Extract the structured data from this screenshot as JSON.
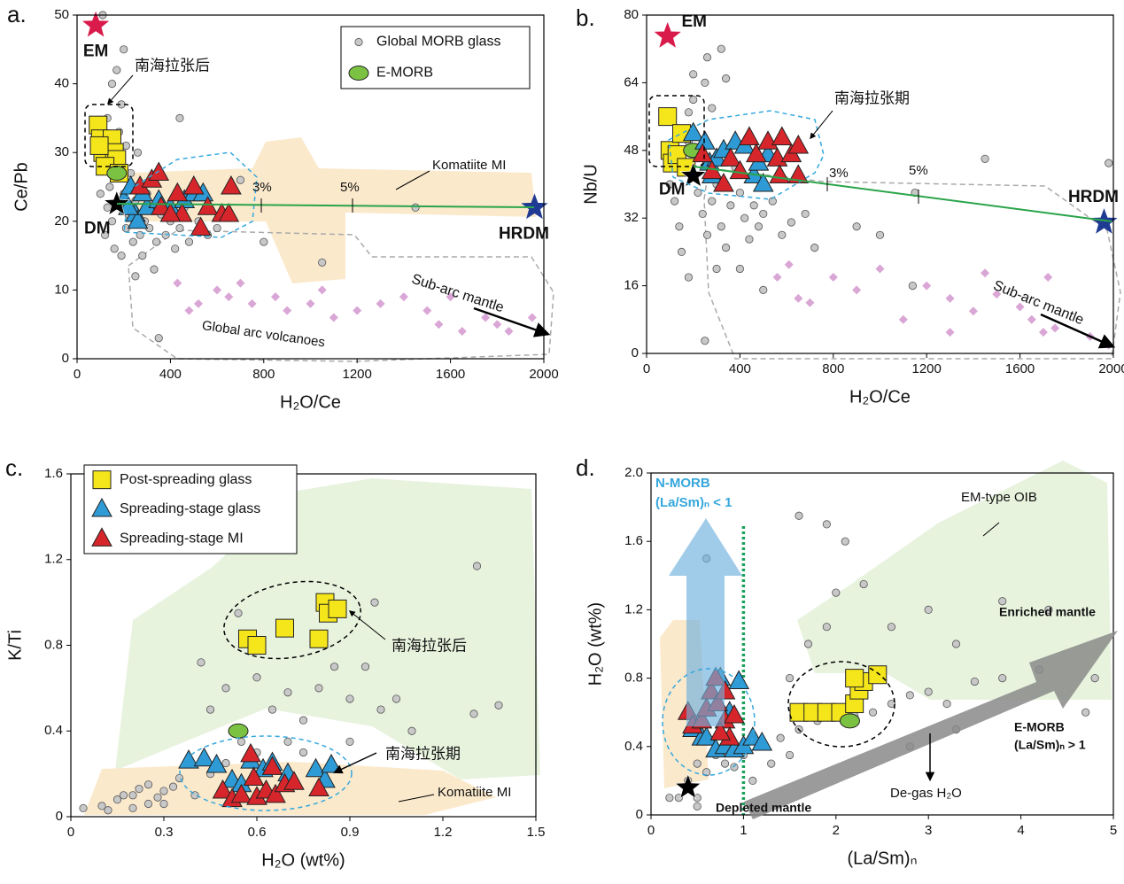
{
  "chart_data": [
    {
      "type": "scatter",
      "label": "a.",
      "xlabel": "H₂O/Ce",
      "ylabel": "Ce/Pb",
      "xlim": [
        0,
        2000
      ],
      "ylim": [
        0,
        50
      ],
      "xticks": [
        0,
        400,
        800,
        1200,
        1600,
        2000
      ],
      "yticks": [
        0,
        10,
        20,
        30,
        40,
        50
      ],
      "series": [
        {
          "name": "Global MORB glass",
          "color": "#c8c8c8",
          "marker": "circle",
          "x": [
            120,
            130,
            140,
            150,
            160,
            170,
            180,
            190,
            200,
            210,
            220,
            230,
            240,
            250,
            260,
            270,
            280,
            290,
            300,
            310,
            320,
            340,
            360,
            380,
            400,
            420,
            440,
            460,
            480,
            520,
            560,
            600,
            150,
            170,
            130,
            200,
            110,
            250,
            330,
            440,
            520,
            700,
            800,
            1050,
            1450,
            350,
            100,
            190,
            150,
            210
          ],
          "values": [
            18,
            22,
            25,
            20,
            16,
            28,
            33,
            37,
            24,
            19,
            21,
            27,
            17,
            23,
            30,
            18,
            15,
            20,
            24,
            19,
            22,
            17,
            21,
            18,
            20,
            16,
            19,
            22,
            17,
            20,
            18,
            19,
            40,
            42,
            35,
            45,
            50,
            12,
            13,
            35,
            24,
            26,
            17,
            14,
            22,
            3,
            24,
            15,
            30,
            31
          ]
        },
        {
          "color": "#d9a6d6",
          "marker": "diamond",
          "x": [
            430,
            480,
            520,
            600,
            650,
            700,
            750,
            850,
            900,
            1000,
            1100,
            1200,
            1300,
            1400,
            1500,
            1550,
            1650,
            1750,
            1800,
            1850,
            1950,
            1600,
            1050
          ],
          "values": [
            11,
            7,
            8,
            10,
            9,
            11,
            8,
            9,
            7,
            8,
            6,
            7,
            8,
            9,
            7,
            5,
            4,
            6,
            5,
            4,
            6,
            9,
            10
          ]
        },
        {
          "color": "#f5e51b",
          "marker": "square",
          "x": [
            90,
            100,
            110,
            150,
            160,
            170,
            120,
            180,
            95
          ],
          "values": [
            34,
            32,
            30,
            32,
            30,
            29,
            28,
            27,
            31
          ]
        },
        {
          "name": "E-MORB",
          "color": "#7cc242",
          "marker": "ellipse",
          "x": [
            170
          ],
          "values": [
            27
          ]
        },
        {
          "color": "#2e9bd6",
          "marker": "triangle",
          "x": [
            200,
            230,
            250,
            260,
            300,
            350,
            400,
            460,
            500,
            540,
            280,
            220
          ],
          "values": [
            23,
            25,
            21,
            20,
            22,
            23,
            22,
            23,
            24,
            24,
            24,
            22
          ]
        },
        {
          "color": "#d7262b",
          "marker": "triangle",
          "x": [
            270,
            320,
            350,
            430,
            450,
            500,
            530,
            560,
            620,
            650,
            660,
            360,
            400
          ],
          "values": [
            25,
            26,
            27,
            24,
            21,
            25,
            19,
            22,
            21,
            21,
            25,
            22,
            21
          ]
        }
      ],
      "end_members": [
        {
          "label": "EM",
          "x": 80,
          "y": 48.5,
          "color": "#d81b4a"
        },
        {
          "label": "DM",
          "x": 170,
          "y": 22.5,
          "color": "#000000"
        },
        {
          "label": "HRDM",
          "x": 1960,
          "y": 22,
          "color": "#1f3a93"
        }
      ],
      "annotations": [
        "南海拉张后",
        "Komatiite MI",
        "3%",
        "5%",
        "Sub-arc mantle",
        "Global arc volcanoes"
      ]
    },
    {
      "type": "scatter",
      "label": "b.",
      "xlabel": "H₂O/Ce",
      "ylabel": "Nb/U",
      "xlim": [
        0,
        2000
      ],
      "ylim": [
        0,
        80
      ],
      "xticks": [
        0,
        400,
        800,
        1200,
        1600,
        2000
      ],
      "yticks": [
        0,
        16,
        32,
        48,
        64,
        80
      ],
      "series": [
        {
          "color": "#c8c8c8",
          "marker": "circle",
          "x": [
            100,
            120,
            140,
            160,
            180,
            200,
            220,
            240,
            260,
            280,
            300,
            320,
            340,
            360,
            380,
            400,
            420,
            440,
            460,
            480,
            500,
            540,
            580,
            620,
            680,
            720,
            200,
            250,
            280,
            320,
            150,
            180,
            300,
            400,
            500,
            900,
            1000,
            1150,
            1450,
            1980,
            1140,
            250,
            340,
            260,
            180
          ],
          "values": [
            40,
            36,
            30,
            44,
            50,
            60,
            38,
            33,
            28,
            36,
            40,
            30,
            25,
            35,
            44,
            38,
            32,
            27,
            35,
            30,
            33,
            36,
            28,
            31,
            33,
            25,
            66,
            64,
            58,
            72,
            24,
            18,
            20,
            20,
            15,
            30,
            28,
            38,
            46,
            45,
            16,
            3,
            65,
            70,
            57
          ]
        },
        {
          "color": "#d9a6d6",
          "marker": "diamond",
          "x": [
            560,
            610,
            650,
            700,
            800,
            900,
            1000,
            1100,
            1200,
            1300,
            1400,
            1500,
            1600,
            1650,
            1750,
            1720,
            1700,
            1900,
            1980,
            1450,
            1300
          ],
          "values": [
            18,
            21,
            13,
            12,
            18,
            15,
            20,
            8,
            16,
            13,
            10,
            14,
            11,
            8,
            6,
            18,
            5,
            4,
            2,
            19,
            5
          ]
        },
        {
          "color": "#f5e51b",
          "marker": "square",
          "x": [
            90,
            100,
            110,
            130,
            170,
            150
          ],
          "values": [
            56,
            48,
            45,
            47,
            44,
            52
          ]
        },
        {
          "color": "#7cc242",
          "marker": "ellipse",
          "x": [
            200
          ],
          "values": [
            48
          ]
        },
        {
          "color": "#2e9bd6",
          "marker": "triangle",
          "x": [
            200,
            250,
            270,
            300,
            330,
            380,
            420,
            460,
            480,
            500,
            520,
            280
          ],
          "values": [
            52,
            50,
            45,
            46,
            48,
            50,
            49,
            42,
            45,
            40,
            47,
            42
          ]
        },
        {
          "color": "#d7262b",
          "marker": "triangle",
          "x": [
            240,
            280,
            330,
            360,
            400,
            440,
            470,
            520,
            560,
            570,
            620,
            650,
            650,
            580
          ],
          "values": [
            47,
            43,
            40,
            46,
            43,
            51,
            47,
            50,
            46,
            42,
            47,
            49,
            42,
            51
          ]
        }
      ],
      "end_members": [
        {
          "label": "EM",
          "x": 90,
          "y": 75,
          "color": "#d81b4a"
        },
        {
          "label": "DM",
          "x": 200,
          "y": 42,
          "color": "#000000"
        },
        {
          "label": "HRDM",
          "x": 1960,
          "y": 31,
          "color": "#1f3a93"
        }
      ],
      "annotations": [
        "南海拉张期",
        "3%",
        "5%",
        "Sub-arc mantle"
      ]
    },
    {
      "type": "scatter",
      "label": "c.",
      "xlabel": "H₂O (wt%)",
      "ylabel": "K/Ti",
      "xlim": [
        0,
        1.5
      ],
      "ylim": [
        0,
        1.6
      ],
      "xticks": [
        0,
        0.3,
        0.6,
        0.9,
        1.2,
        1.5
      ],
      "yticks": [
        0,
        0.4,
        0.8,
        1.2,
        1.6
      ],
      "series": [
        {
          "color": "#c8c8c8",
          "marker": "circle",
          "x": [
            0.04,
            0.1,
            0.15,
            0.2,
            0.25,
            0.3,
            0.35,
            0.4,
            0.2,
            0.3,
            0.45,
            0.5,
            0.55,
            0.6,
            0.65,
            0.7,
            0.75,
            0.8,
            0.85,
            0.9,
            0.95,
            1.0,
            1.05,
            0.6,
            0.5,
            0.45,
            0.7,
            0.75,
            0.9,
            1.1,
            1.31,
            1.3,
            1.38,
            0.98,
            0.17,
            0.22,
            0.28,
            0.33,
            0.25,
            0.12,
            0.54,
            0.42
          ],
          "values": [
            0.04,
            0.05,
            0.08,
            0.1,
            0.15,
            0.12,
            0.18,
            0.1,
            0.04,
            0.06,
            0.2,
            0.25,
            0.35,
            0.3,
            0.5,
            0.58,
            0.45,
            0.6,
            0.7,
            0.55,
            0.7,
            0.5,
            0.55,
            0.65,
            0.6,
            0.5,
            0.35,
            0.3,
            0.35,
            0.4,
            1.17,
            0.48,
            0.52,
            1.0,
            0.1,
            0.13,
            0.09,
            0.14,
            0.06,
            0.03,
            0.95,
            0.72
          ]
        },
        {
          "name": "Post-spreading glass",
          "color": "#f5e51b",
          "marker": "square",
          "x": [
            0.57,
            0.6,
            0.69,
            0.8,
            0.82,
            0.83,
            0.86
          ],
          "values": [
            0.83,
            0.8,
            0.88,
            0.83,
            1.0,
            0.95,
            0.97
          ]
        },
        {
          "color": "#7cc242",
          "marker": "ellipse",
          "x": [
            0.54
          ],
          "values": [
            0.4
          ]
        },
        {
          "name": "Spreading-stage glass",
          "color": "#2e9bd6",
          "marker": "triangle",
          "x": [
            0.38,
            0.43,
            0.47,
            0.52,
            0.58,
            0.62,
            0.65,
            0.7,
            0.79,
            0.82,
            0.84,
            0.55
          ],
          "values": [
            0.26,
            0.27,
            0.24,
            0.17,
            0.26,
            0.22,
            0.25,
            0.2,
            0.22,
            0.17,
            0.24,
            0.15
          ]
        },
        {
          "name": "Spreading-stage MI",
          "color": "#d7262b",
          "marker": "triangle",
          "x": [
            0.49,
            0.52,
            0.55,
            0.58,
            0.59,
            0.6,
            0.63,
            0.66,
            0.69,
            0.72,
            0.65,
            0.8
          ],
          "values": [
            0.12,
            0.08,
            0.1,
            0.29,
            0.18,
            0.09,
            0.12,
            0.1,
            0.15,
            0.16,
            0.23,
            0.13
          ]
        }
      ],
      "annotations": [
        "南海拉张后",
        "南海拉张期",
        "Komatiite MI"
      ]
    },
    {
      "type": "scatter",
      "label": "d.",
      "xlabel": "(La/Sm)ₙ",
      "ylabel": "H₂O (wt%)",
      "xlim": [
        0,
        5
      ],
      "ylim": [
        0,
        2
      ],
      "xticks": [
        0,
        1,
        2,
        3,
        4,
        5
      ],
      "yticks": [
        0,
        0.4,
        0.8,
        1.2,
        1.6,
        {
          "value": 2,
          "label": "2.0"
        }
      ],
      "vline": 1,
      "series": [
        {
          "color": "#c8c8c8",
          "marker": "circle",
          "x": [
            0.3,
            0.4,
            0.5,
            0.6,
            0.7,
            0.8,
            0.9,
            1.0,
            1.2,
            1.4,
            1.6,
            1.8,
            2.0,
            2.2,
            2.4,
            2.6,
            2.8,
            3.0,
            3.2,
            3.5,
            3.8,
            4.2,
            4.8,
            1.5,
            1.7,
            1.9,
            2.0,
            2.1,
            2.3,
            2.6,
            3.0,
            3.3,
            3.8,
            4.3,
            1.6,
            1.9,
            2.8,
            3.3,
            4.7,
            0.2,
            0.5,
            1.1,
            1.3,
            1.5,
            0.6,
            0.5
          ],
          "values": [
            0.1,
            0.2,
            0.3,
            0.25,
            0.35,
            0.3,
            0.28,
            0.35,
            0.4,
            0.45,
            0.5,
            0.55,
            0.6,
            0.58,
            0.6,
            0.65,
            0.7,
            0.72,
            0.65,
            0.78,
            0.8,
            0.85,
            0.8,
            0.8,
            1.0,
            1.1,
            1.3,
            1.6,
            1.35,
            1.1,
            1.2,
            1.0,
            1.25,
            1.2,
            1.75,
            1.7,
            0.4,
            0.5,
            0.6,
            0.1,
            0.1,
            0.2,
            0.3,
            0.35,
            1.5,
            0.05
          ]
        },
        {
          "color": "#f5e51b",
          "marker": "square",
          "x": [
            1.6,
            1.75,
            1.9,
            2.05,
            2.2,
            2.25,
            2.3,
            2.45,
            2.2
          ],
          "values": [
            0.6,
            0.6,
            0.6,
            0.6,
            0.65,
            0.73,
            0.78,
            0.82,
            0.8
          ]
        },
        {
          "color": "#7cc242",
          "marker": "ellipse",
          "x": [
            2.15
          ],
          "values": [
            0.55
          ]
        },
        {
          "color": "#2e9bd6",
          "marker": "triangle",
          "x": [
            0.45,
            0.55,
            0.6,
            0.7,
            0.8,
            0.9,
            1.0,
            1.1,
            1.2,
            0.75,
            0.95,
            0.85
          ],
          "values": [
            0.5,
            0.45,
            0.45,
            0.38,
            0.4,
            0.38,
            0.4,
            0.45,
            0.42,
            0.8,
            0.78,
            0.6
          ]
        },
        {
          "color": "#d7262b",
          "marker": "triangle",
          "x": [
            0.4,
            0.45,
            0.55,
            0.6,
            0.65,
            0.7,
            0.72,
            0.8,
            0.85,
            0.9,
            0.8,
            0.75
          ],
          "values": [
            0.6,
            0.52,
            0.55,
            0.62,
            0.72,
            0.8,
            0.65,
            0.55,
            0.45,
            0.58,
            0.72,
            0.48
          ]
        }
      ],
      "end_members": [
        {
          "x": 0.4,
          "y": 0.16,
          "color": "#000000"
        }
      ],
      "annotations": [
        "N-MORB",
        "(La/Sm)ₙ < 1",
        "EM-type OIB",
        "Enriched mantle",
        "E-MORB",
        "(La/Sm)ₙ > 1",
        "De-gas H₂O",
        "Depleted mantle"
      ]
    }
  ]
}
